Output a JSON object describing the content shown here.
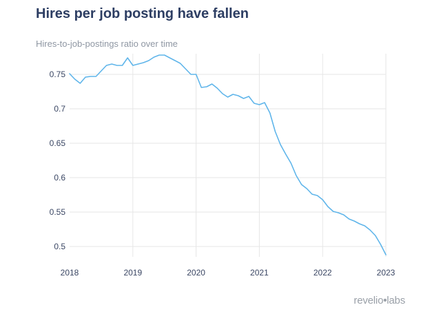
{
  "title": "Hires per job posting have fallen",
  "subtitle": "Hires-to-job-postings ratio over time",
  "watermark": {
    "brand": "revelio",
    "mark": "•",
    "suffix": "labs"
  },
  "colors": {
    "line": "#5fb5ea",
    "grid": "#e6e6e6",
    "title": "#2d3e63",
    "subtitle": "#8f97a3",
    "tick": "#3a4663"
  },
  "chart_data": {
    "type": "line",
    "title": "Hires per job posting have fallen",
    "subtitle": "Hires-to-job-postings ratio over time",
    "xlabel": "",
    "ylabel": "",
    "xlim": [
      2018,
      2023
    ],
    "ylim": [
      0.485,
      0.78
    ],
    "xticks": [
      2018,
      2019,
      2020,
      2021,
      2022,
      2023
    ],
    "xtick_labels": [
      "2018",
      "2019",
      "2020",
      "2021",
      "2022",
      "2023"
    ],
    "yticks": [
      0.5,
      0.55,
      0.6,
      0.65,
      0.7,
      0.75
    ],
    "ytick_labels": [
      "0.5",
      "0.55",
      "0.6",
      "0.65",
      "0.7",
      "0.75"
    ],
    "grid": true,
    "series": [
      {
        "color": "#5fb5ea",
        "x": [
          2018.0,
          2018.083,
          2018.167,
          2018.25,
          2018.333,
          2018.417,
          2018.5,
          2018.583,
          2018.667,
          2018.75,
          2018.833,
          2018.917,
          2019.0,
          2019.083,
          2019.167,
          2019.25,
          2019.333,
          2019.417,
          2019.5,
          2019.583,
          2019.667,
          2019.75,
          2019.833,
          2019.917,
          2020.0,
          2020.083,
          2020.167,
          2020.25,
          2020.333,
          2020.417,
          2020.5,
          2020.583,
          2020.667,
          2020.75,
          2020.833,
          2020.917,
          2021.0,
          2021.083,
          2021.167,
          2021.25,
          2021.333,
          2021.417,
          2021.5,
          2021.583,
          2021.667,
          2021.75,
          2021.833,
          2021.917,
          2022.0,
          2022.083,
          2022.167,
          2022.25,
          2022.333,
          2022.417,
          2022.5,
          2022.583,
          2022.667,
          2022.75,
          2022.833,
          2022.917,
          2023.0
        ],
        "y": [
          0.751,
          0.743,
          0.737,
          0.746,
          0.747,
          0.747,
          0.755,
          0.763,
          0.765,
          0.763,
          0.763,
          0.774,
          0.763,
          0.765,
          0.767,
          0.77,
          0.775,
          0.778,
          0.778,
          0.774,
          0.77,
          0.766,
          0.758,
          0.75,
          0.75,
          0.731,
          0.732,
          0.736,
          0.73,
          0.722,
          0.717,
          0.721,
          0.719,
          0.715,
          0.718,
          0.708,
          0.706,
          0.709,
          0.694,
          0.667,
          0.648,
          0.634,
          0.621,
          0.603,
          0.59,
          0.584,
          0.576,
          0.574,
          0.568,
          0.558,
          0.551,
          0.549,
          0.546,
          0.54,
          0.537,
          0.533,
          0.53,
          0.524,
          0.516,
          0.503,
          0.488
        ]
      }
    ]
  }
}
